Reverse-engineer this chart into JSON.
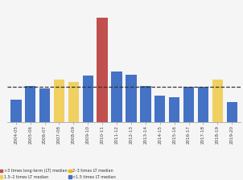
{
  "categories": [
    "2004-05",
    "2005-06",
    "2006-07",
    "2007-08",
    "2008-09",
    "2009-10",
    "2010-11",
    "2011-12",
    "2012-13",
    "2013-14",
    "2014-15",
    "2015-16",
    "2016-17",
    "2017-18",
    "2018-19",
    "2019-20"
  ],
  "values": [
    47,
    75,
    70,
    88,
    83,
    96,
    215,
    105,
    98,
    75,
    55,
    52,
    73,
    73,
    88,
    42
  ],
  "colors": [
    "#4472c4",
    "#4472c4",
    "#4472c4",
    "#f0d060",
    "#f0d060",
    "#4472c4",
    "#c0504d",
    "#4472c4",
    "#4472c4",
    "#4472c4",
    "#4472c4",
    "#4472c4",
    "#4472c4",
    "#4472c4",
    "#f0d060",
    "#4472c4"
  ],
  "dashed_line_y": 73,
  "background_color": "#f5f5f5",
  "legend": [
    {
      "label": ">3 times long-term (LT) median",
      "color": "#c0504d"
    },
    {
      "label": "2–3 times LT median",
      "color": "#f5b800"
    },
    {
      "label": "1.5–2 times LT median",
      "color": "#f0d060"
    },
    {
      "label": "<1.5 times LT median",
      "color": "#4472c4"
    }
  ],
  "ylim": [
    0,
    240
  ],
  "figsize": [
    3.02,
    2.24
  ],
  "dpi": 100
}
